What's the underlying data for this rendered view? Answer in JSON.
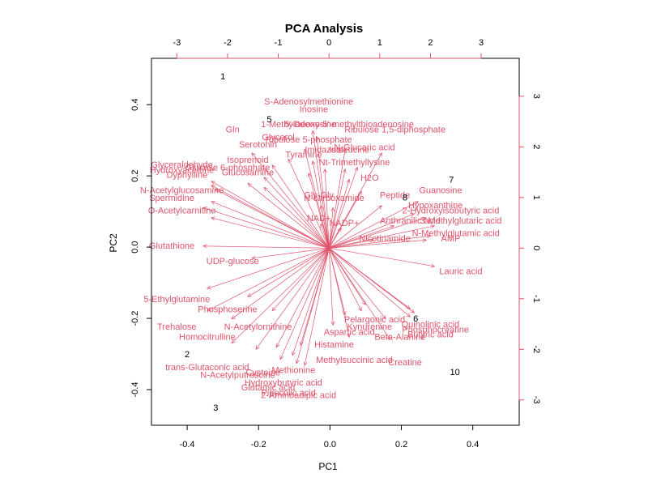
{
  "chart_data": {
    "type": "scatter",
    "title": "PCA Analysis",
    "xlabel": "PC1",
    "ylabel": "PC2",
    "xlim": [
      -0.5,
      0.53
    ],
    "ylim": [
      -0.5,
      0.53
    ],
    "xticks": [
      -0.4,
      -0.2,
      0.0,
      0.2,
      0.4
    ],
    "xtick_labels": [
      "-0.4",
      "-0.2",
      "0.0",
      "0.2",
      "0.4"
    ],
    "yticks": [
      -0.4,
      -0.2,
      0.0,
      0.2,
      0.4
    ],
    "ytick_labels": [
      "-0.4",
      "-0.2",
      "0.0",
      "0.2",
      "0.4"
    ],
    "loading_lim": [
      -3.5,
      3.75
    ],
    "loading_ticks": [
      -3,
      -2,
      -1,
      0,
      1,
      2,
      3
    ],
    "loading_tick_labels": [
      "-3",
      "-2",
      "-1",
      "0",
      "1",
      "2",
      "3"
    ],
    "grid": false,
    "arrow_color": "#DF536B",
    "point_color": "#000000",
    "scores": [
      {
        "label": "1",
        "x": -0.3,
        "y": 0.48
      },
      {
        "label": "2",
        "x": -0.4,
        "y": -0.3
      },
      {
        "label": "3",
        "x": -0.32,
        "y": -0.45
      },
      {
        "label": "5",
        "x": -0.17,
        "y": 0.36
      },
      {
        "label": "6",
        "x": 0.24,
        "y": -0.2
      },
      {
        "label": "7",
        "x": 0.34,
        "y": 0.19
      },
      {
        "label": "8",
        "x": 0.21,
        "y": 0.14
      },
      {
        "label": "10",
        "x": 0.35,
        "y": -0.35
      }
    ],
    "loadings": [
      {
        "label": "S-Adenosylmethionine",
        "x": -0.4,
        "y": 2.9
      },
      {
        "label": "Inosine",
        "x": -0.3,
        "y": 2.75
      },
      {
        "label": "1-Methyladenosine",
        "x": -0.6,
        "y": 2.45
      },
      {
        "label": "5'-Deoxy-5'-methylthioadenosine",
        "x": 0.4,
        "y": 2.45
      },
      {
        "label": "Ribulose 1,5-diphosphate",
        "x": 1.3,
        "y": 2.35
      },
      {
        "label": "Gln",
        "x": -1.9,
        "y": 2.35
      },
      {
        "label": "Glycerol",
        "x": -1.0,
        "y": 2.2
      },
      {
        "label": "Ribulose 5-phosphate",
        "x": -0.4,
        "y": 2.15
      },
      {
        "label": "Serotonin",
        "x": -1.4,
        "y": 2.05
      },
      {
        "label": "Imidazole",
        "x": -0.1,
        "y": 1.95
      },
      {
        "label": "N-Glucaric acid",
        "x": 0.7,
        "y": 2.0
      },
      {
        "label": "Isoleucine",
        "x": 0.4,
        "y": 1.95
      },
      {
        "label": "Tyramine",
        "x": -0.5,
        "y": 1.85
      },
      {
        "label": "Isoprenoid",
        "x": -1.6,
        "y": 1.75
      },
      {
        "label": "Nt-Trimethyllysine",
        "x": 0.5,
        "y": 1.7
      },
      {
        "label": "Glyceraldehyde",
        "x": -2.9,
        "y": 1.65
      },
      {
        "label": "Hydroxyacetone",
        "x": -2.9,
        "y": 1.55
      },
      {
        "label": "Glucose 6-phosphate",
        "x": -2.0,
        "y": 1.6
      },
      {
        "label": "Dyphylline",
        "x": -2.8,
        "y": 1.45
      },
      {
        "label": "Glucosamine",
        "x": -1.6,
        "y": 1.5
      },
      {
        "label": "H2O",
        "x": 0.8,
        "y": 1.4
      },
      {
        "label": "N-carboxamide",
        "x": 0.1,
        "y": 1.0
      },
      {
        "label": "Peptide",
        "x": 1.3,
        "y": 1.05
      },
      {
        "label": "N-Acetylglucosamine",
        "x": -2.9,
        "y": 1.15
      },
      {
        "label": "O-Acetylcarnitine",
        "x": -2.9,
        "y": 0.75
      },
      {
        "label": "Spermidine",
        "x": -3.1,
        "y": 1.0
      },
      {
        "label": "Gly-Gly",
        "x": -0.2,
        "y": 1.05
      },
      {
        "label": "Guanosine",
        "x": 2.2,
        "y": 1.15
      },
      {
        "label": "Hypoxanthine",
        "x": 2.1,
        "y": 0.85
      },
      {
        "label": "2-Hydroxyisobutyric acid",
        "x": 2.4,
        "y": 0.75
      },
      {
        "label": "NADP+",
        "x": 0.3,
        "y": 0.5
      },
      {
        "label": "NAD+",
        "x": -0.2,
        "y": 0.6
      },
      {
        "label": "Anthranilic acid",
        "x": 1.6,
        "y": 0.55
      },
      {
        "label": "3-Methylglutaric acid",
        "x": 2.6,
        "y": 0.55
      },
      {
        "label": "N-Methylglutamic acid",
        "x": 2.5,
        "y": 0.3
      },
      {
        "label": "AMP",
        "x": 2.4,
        "y": 0.2
      },
      {
        "label": "Nicotinamide",
        "x": 1.1,
        "y": 0.2
      },
      {
        "label": "Glutathione",
        "x": -3.1,
        "y": 0.05
      },
      {
        "label": "UDP-glucose",
        "x": -1.9,
        "y": -0.25
      },
      {
        "label": "Lauric acid",
        "x": 2.6,
        "y": -0.45
      },
      {
        "label": "5-Ethylglutamine",
        "x": -3.0,
        "y": -1.0
      },
      {
        "label": "Phosphoserine",
        "x": -2.0,
        "y": -1.2
      },
      {
        "label": "Trehalose",
        "x": -3.0,
        "y": -1.55
      },
      {
        "label": "N-Acetylornithine",
        "x": -1.4,
        "y": -1.55
      },
      {
        "label": "Homocitrulline",
        "x": -2.4,
        "y": -1.75
      },
      {
        "label": "Kynurenine",
        "x": 0.8,
        "y": -1.55
      },
      {
        "label": "Pelargonic acid",
        "x": 0.9,
        "y": -1.4
      },
      {
        "label": "Quinolinic acid",
        "x": 2.0,
        "y": -1.5
      },
      {
        "label": "Phosphocreatine",
        "x": 2.1,
        "y": -1.6
      },
      {
        "label": "Aspartic acid",
        "x": 0.4,
        "y": -1.65
      },
      {
        "label": "Beta-Alanine",
        "x": 1.4,
        "y": -1.75
      },
      {
        "label": "Butyric acid",
        "x": 2.0,
        "y": -1.7
      },
      {
        "label": "Histamine",
        "x": 0.1,
        "y": -1.9
      },
      {
        "label": "trans-Glutaconic acid",
        "x": -2.4,
        "y": -2.35
      },
      {
        "label": "Creatine",
        "x": 1.5,
        "y": -2.25
      },
      {
        "label": "Cysteine",
        "x": -1.3,
        "y": -2.45
      },
      {
        "label": "Methionine",
        "x": -0.7,
        "y": -2.4
      },
      {
        "label": "N-Acetylputrescine",
        "x": -1.8,
        "y": -2.5
      },
      {
        "label": "Hydroxybutyric acid",
        "x": -0.9,
        "y": -2.65
      },
      {
        "label": "Glutamic acid",
        "x": -1.2,
        "y": -2.75
      },
      {
        "label": "Pipecolic acid",
        "x": -0.8,
        "y": -2.85
      },
      {
        "label": "2-Aminoadipic acid",
        "x": -0.6,
        "y": -2.9
      },
      {
        "label": "Methylsuccinic acid",
        "x": 0.5,
        "y": -2.2
      }
    ]
  }
}
